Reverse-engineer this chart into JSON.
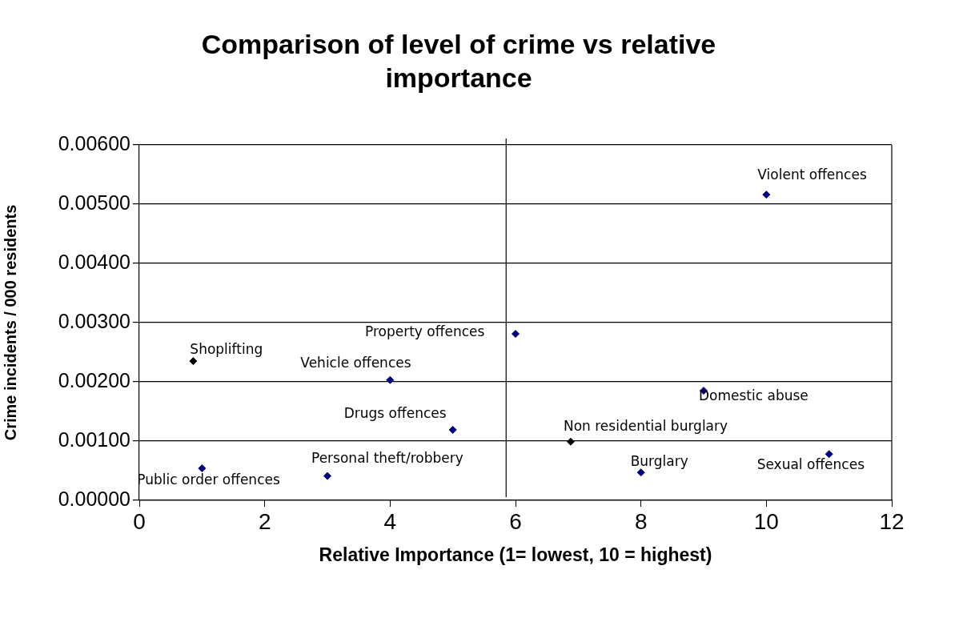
{
  "chart_data": {
    "type": "scatter",
    "title": "Comparison of level of crime vs relative importance",
    "xlabel": "Relative Importance (1= lowest, 10 = highest)",
    "ylabel": "Crime incidents / 000 residents",
    "x": [
      0.86,
      1,
      3,
      4,
      5,
      6,
      6.88,
      8,
      9,
      10,
      11
    ],
    "values": [
      0.00235,
      0.00054,
      0.00041,
      0.00203,
      0.00119,
      0.00281,
      0.00099,
      0.00047,
      0.00185,
      0.00516,
      0.00078
    ],
    "colors": [
      "#000000",
      "#000080",
      "#000080",
      "#000080",
      "#000080",
      "#000080",
      "#000000",
      "#000080",
      "#000080",
      "#000080",
      "#000080"
    ],
    "xlim": [
      0,
      12
    ],
    "xticks": [
      0,
      2,
      4,
      6,
      8,
      10,
      12
    ],
    "ylim": [
      0,
      0.006
    ],
    "yticks": [
      {
        "value": 0,
        "label": "0.00000"
      },
      {
        "value": 0.001,
        "label": "0.00100"
      },
      {
        "value": 0.002,
        "label": "0.00200"
      },
      {
        "value": 0.003,
        "label": "0.00300"
      },
      {
        "value": 0.004,
        "label": "0.00400"
      },
      {
        "value": 0.005,
        "label": "0.00500"
      },
      {
        "value": 0.006,
        "label": "0.00600"
      }
    ],
    "grid": "y",
    "marker": "diamond",
    "legend": false,
    "ref_lines": [
      {
        "axis": "x",
        "value": 5.85,
        "color": "#000000"
      }
    ],
    "annotations": [
      {
        "text": "Shoplifting",
        "x": 0.86,
        "y": 0.00235
      },
      {
        "text": "Public order offences",
        "x": 1,
        "y": 0.00054
      },
      {
        "text": "Personal theft/robbery",
        "x": 3,
        "y": 0.00041
      },
      {
        "text": "Vehicle offences",
        "x": 4,
        "y": 0.00203
      },
      {
        "text": "Drugs offences",
        "x": 5,
        "y": 0.00119
      },
      {
        "text": "Property offences",
        "x": 6,
        "y": 0.00281
      },
      {
        "text": "Non residential burglary",
        "x": 6.88,
        "y": 0.00099
      },
      {
        "text": "Burglary",
        "x": 8,
        "y": 0.00047
      },
      {
        "text": "Domestic abuse",
        "x": 9,
        "y": 0.00185
      },
      {
        "text": "Violent offences",
        "x": 10,
        "y": 0.00516
      },
      {
        "text": "Sexual offences",
        "x": 11,
        "y": 0.00078
      }
    ]
  }
}
